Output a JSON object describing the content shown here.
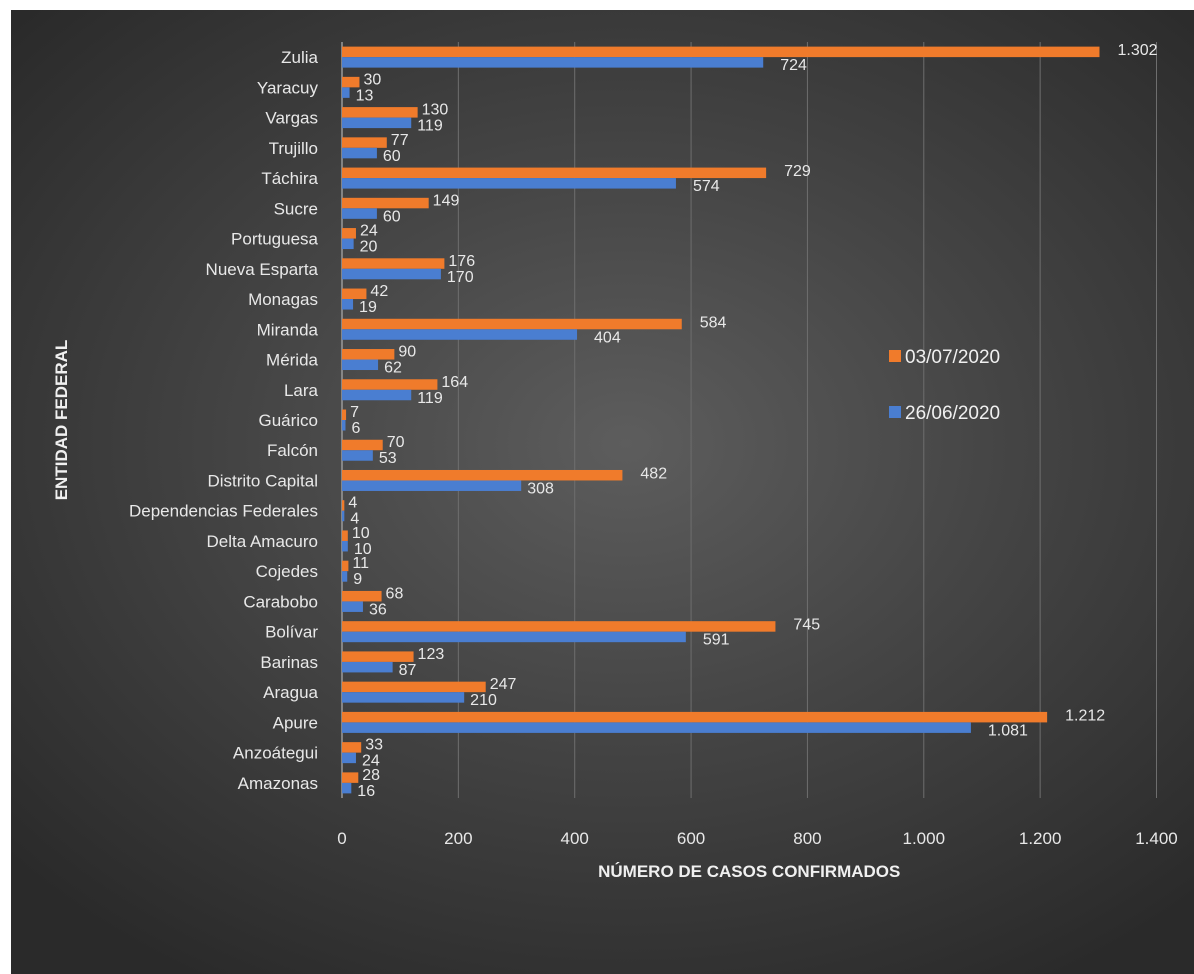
{
  "chart_data": {
    "type": "bar",
    "orientation": "horizontal",
    "categories": [
      "Zulia",
      "Yaracuy",
      "Vargas",
      "Trujillo",
      "Táchira",
      "Sucre",
      "Portuguesa",
      "Nueva Esparta",
      "Monagas",
      "Miranda",
      "Mérida",
      "Lara",
      "Guárico",
      "Falcón",
      "Distrito Capital",
      "Dependencias Federales",
      "Delta Amacuro",
      "Cojedes",
      "Carabobo",
      "Bolívar",
      "Barinas",
      "Aragua",
      "Apure",
      "Anzoátegui",
      "Amazonas"
    ],
    "series": [
      {
        "name": "03/07/2020",
        "color": "#f07b2b",
        "values": [
          1302,
          30,
          130,
          77,
          729,
          149,
          24,
          176,
          42,
          584,
          90,
          164,
          7,
          70,
          482,
          4,
          10,
          11,
          68,
          745,
          123,
          247,
          1212,
          33,
          28
        ],
        "labels": [
          "1.302",
          "30",
          "130",
          "77",
          "729",
          "149",
          "24",
          "176",
          "42",
          "584",
          "90",
          "164",
          "7",
          "70",
          "482",
          "4",
          "10",
          "11",
          "68",
          "745",
          "123",
          "247",
          "1.212",
          "33",
          "28"
        ]
      },
      {
        "name": "26/06/2020",
        "color": "#4a7ed1",
        "values": [
          724,
          13,
          119,
          60,
          574,
          60,
          20,
          170,
          19,
          404,
          62,
          119,
          6,
          53,
          308,
          4,
          10,
          9,
          36,
          591,
          87,
          210,
          1081,
          24,
          16
        ],
        "labels": [
          "724",
          "13",
          "119",
          "60",
          "574",
          "60",
          "20",
          "170",
          "19",
          "404",
          "62",
          "119",
          "6",
          "53",
          "308",
          "4",
          "10",
          "9",
          "36",
          "591",
          "87",
          "210",
          "1.081",
          "24",
          "16"
        ]
      }
    ],
    "xlabel": "NÚMERO DE CASOS CONFIRMADOS",
    "ylabel": "ENTIDAD FEDERAL",
    "xlim": [
      0,
      1400
    ],
    "xticks": [
      0,
      200,
      400,
      600,
      800,
      1000,
      1200,
      1400
    ],
    "xtick_labels": [
      "0",
      "200",
      "400",
      "600",
      "800",
      "1.000",
      "1.200",
      "1.400"
    ],
    "grid": "vertical",
    "legend_position": "right"
  }
}
